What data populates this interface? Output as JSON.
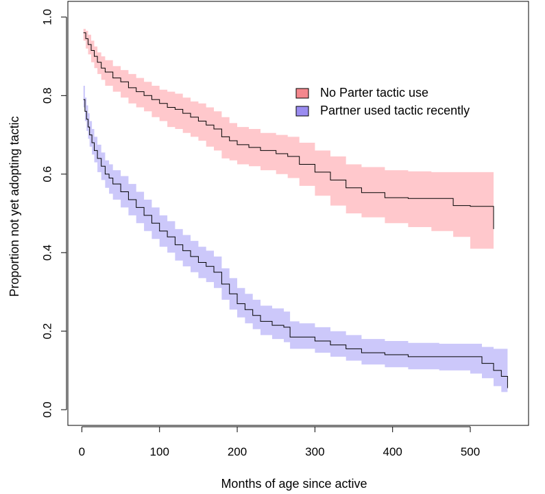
{
  "chart_data": {
    "type": "line",
    "title": "",
    "xlabel": "Months of age since active",
    "ylabel": "Proportion not yet adopting tactic",
    "xlim": [
      -18,
      575
    ],
    "ylim": [
      -0.04,
      1.04
    ],
    "x_ticks": [
      0,
      100,
      200,
      300,
      400,
      500
    ],
    "x_tick_labels": [
      "0",
      "100",
      "200",
      "300",
      "400",
      "500"
    ],
    "y_ticks": [
      0.0,
      0.2,
      0.4,
      0.6,
      0.8,
      1.0
    ],
    "y_tick_labels": [
      "0.0",
      "0.2",
      "0.4",
      "0.6",
      "0.8",
      "1.0"
    ],
    "grid": false,
    "legend_position": "top-right",
    "legend": [
      {
        "label": "No Parter tactic use",
        "color": "#F4878D"
      },
      {
        "label": "Partner used tactic recently",
        "color": "#9A8CF0"
      }
    ],
    "series": [
      {
        "name": "No Parter tactic use",
        "band_color": "#FFC8CC",
        "line_color": "#000000",
        "x": [
          2,
          5,
          8,
          12,
          16,
          20,
          25,
          30,
          40,
          50,
          60,
          70,
          80,
          90,
          100,
          110,
          120,
          130,
          140,
          150,
          160,
          170,
          180,
          190,
          200,
          215,
          230,
          250,
          265,
          280,
          300,
          320,
          340,
          360,
          390,
          420,
          450,
          478,
          500,
          530
        ],
        "y": [
          0.96,
          0.945,
          0.93,
          0.915,
          0.9,
          0.885,
          0.87,
          0.86,
          0.845,
          0.835,
          0.82,
          0.81,
          0.8,
          0.79,
          0.78,
          0.77,
          0.765,
          0.755,
          0.745,
          0.735,
          0.725,
          0.715,
          0.695,
          0.685,
          0.675,
          0.668,
          0.66,
          0.652,
          0.645,
          0.625,
          0.605,
          0.585,
          0.565,
          0.553,
          0.54,
          0.538,
          0.538,
          0.52,
          0.518,
          0.46
        ],
        "lower": [
          0.94,
          0.92,
          0.905,
          0.885,
          0.87,
          0.855,
          0.84,
          0.825,
          0.81,
          0.795,
          0.78,
          0.77,
          0.76,
          0.745,
          0.735,
          0.72,
          0.715,
          0.705,
          0.695,
          0.685,
          0.67,
          0.66,
          0.64,
          0.635,
          0.625,
          0.62,
          0.61,
          0.6,
          0.59,
          0.57,
          0.545,
          0.52,
          0.5,
          0.49,
          0.475,
          0.465,
          0.455,
          0.44,
          0.41,
          0.35
        ],
        "upper": [
          0.97,
          0.965,
          0.955,
          0.94,
          0.925,
          0.91,
          0.9,
          0.89,
          0.875,
          0.865,
          0.855,
          0.845,
          0.835,
          0.825,
          0.815,
          0.81,
          0.805,
          0.795,
          0.785,
          0.78,
          0.77,
          0.76,
          0.745,
          0.73,
          0.72,
          0.715,
          0.705,
          0.7,
          0.695,
          0.68,
          0.66,
          0.645,
          0.625,
          0.618,
          0.61,
          0.607,
          0.605,
          0.605,
          0.605,
          0.605
        ]
      },
      {
        "name": "Partner used tactic recently",
        "band_color": "#CCC8FA",
        "line_color": "#000000",
        "x": [
          2,
          4,
          6,
          8,
          10,
          13,
          16,
          20,
          25,
          30,
          35,
          40,
          50,
          60,
          70,
          80,
          90,
          100,
          110,
          120,
          130,
          140,
          150,
          160,
          170,
          180,
          190,
          200,
          210,
          220,
          230,
          245,
          260,
          268,
          280,
          300,
          320,
          340,
          360,
          390,
          420,
          460,
          500,
          515,
          530,
          540,
          548
        ],
        "y": [
          0.79,
          0.76,
          0.74,
          0.72,
          0.7,
          0.68,
          0.66,
          0.64,
          0.62,
          0.6,
          0.59,
          0.575,
          0.555,
          0.535,
          0.515,
          0.495,
          0.475,
          0.455,
          0.44,
          0.42,
          0.405,
          0.39,
          0.375,
          0.365,
          0.35,
          0.32,
          0.295,
          0.27,
          0.255,
          0.24,
          0.225,
          0.215,
          0.21,
          0.185,
          0.185,
          0.175,
          0.165,
          0.155,
          0.145,
          0.14,
          0.135,
          0.135,
          0.135,
          0.118,
          0.1,
          0.085,
          0.055
        ],
        "lower": [
          0.77,
          0.735,
          0.71,
          0.69,
          0.67,
          0.65,
          0.63,
          0.605,
          0.585,
          0.565,
          0.55,
          0.535,
          0.515,
          0.495,
          0.475,
          0.455,
          0.435,
          0.415,
          0.4,
          0.38,
          0.365,
          0.35,
          0.335,
          0.325,
          0.31,
          0.28,
          0.255,
          0.235,
          0.22,
          0.205,
          0.19,
          0.18,
          0.172,
          0.155,
          0.155,
          0.145,
          0.135,
          0.125,
          0.115,
          0.108,
          0.103,
          0.1,
          0.092,
          0.08,
          0.06,
          0.045,
          0.025
        ],
        "upper": [
          0.825,
          0.795,
          0.775,
          0.755,
          0.735,
          0.715,
          0.695,
          0.675,
          0.655,
          0.635,
          0.625,
          0.61,
          0.595,
          0.575,
          0.555,
          0.535,
          0.515,
          0.495,
          0.48,
          0.46,
          0.445,
          0.43,
          0.415,
          0.405,
          0.39,
          0.36,
          0.335,
          0.31,
          0.295,
          0.28,
          0.265,
          0.258,
          0.25,
          0.225,
          0.22,
          0.21,
          0.2,
          0.19,
          0.18,
          0.175,
          0.17,
          0.168,
          0.168,
          0.16,
          0.155,
          0.155,
          0.155
        ]
      }
    ]
  }
}
